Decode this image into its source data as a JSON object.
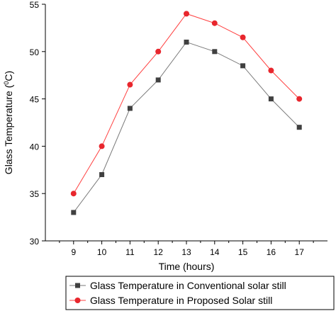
{
  "chart_data": {
    "type": "line",
    "title": "",
    "xlabel": "Time (hours)",
    "ylabel_main": "Glass Temperature (",
    "ylabel_sup": "0",
    "ylabel_tail": "C)",
    "x": [
      9,
      10,
      11,
      12,
      13,
      14,
      15,
      16,
      17
    ],
    "xticks": [
      9,
      10,
      11,
      12,
      13,
      14,
      15,
      16,
      17
    ],
    "xlim": [
      8,
      18
    ],
    "ylim": [
      30,
      55
    ],
    "yticks": [
      30,
      35,
      40,
      45,
      50,
      55
    ],
    "grid": false,
    "legend_position": "bottom-right",
    "series": [
      {
        "name": "Glass Temperature in Conventional solar still",
        "values": [
          33,
          37,
          44,
          47,
          51,
          50,
          48.5,
          45,
          42
        ],
        "line_color": "#7a7a7a",
        "marker_color": "#404040",
        "marker": "square"
      },
      {
        "name": "Glass Temperature in Proposed Solar still",
        "values": [
          35,
          40,
          46.5,
          50,
          54,
          53,
          51.5,
          48,
          45
        ],
        "line_color": "#ff4040",
        "marker_color": "#e8262d",
        "marker": "circle"
      }
    ]
  }
}
